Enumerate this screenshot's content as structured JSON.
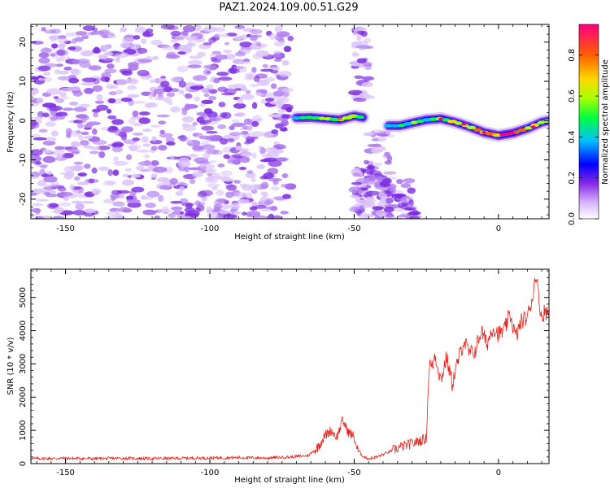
{
  "title": "PAZ1.2024.109.00.51.G29",
  "colors": {
    "amplitude_cmap": [
      "#ffffff",
      "#d9b8ff",
      "#8a2be2",
      "#0000ff",
      "#00bfff",
      "#00ff40",
      "#aaff00",
      "#ffd700",
      "#ff6000",
      "#ff0080"
    ],
    "snr_line": "#e8201a"
  },
  "chart_data": [
    {
      "type": "heatmap",
      "xlabel": "Height of straight line (km)",
      "ylabel": "Frequency (Hz)",
      "xlim": [
        -162,
        17.5
      ],
      "ylim": [
        -25,
        24.5
      ],
      "xticks": [
        -150,
        -100,
        -50,
        0
      ],
      "yticks": [
        -20,
        -10,
        0,
        10,
        20
      ],
      "colorbar": {
        "label": "Normalized spectral amplitude",
        "range": [
          0.0,
          0.95
        ],
        "ticks": [
          0.0,
          0.2,
          0.4,
          0.6,
          0.8
        ]
      },
      "ridge": [
        {
          "x": -70,
          "y": 0.7,
          "amp": 0.55
        },
        {
          "x": -65,
          "y": 0.8,
          "amp": 0.6
        },
        {
          "x": -60,
          "y": 0.5,
          "amp": 0.65
        },
        {
          "x": -55,
          "y": 0.2,
          "amp": 0.7
        },
        {
          "x": -50,
          "y": 1.2,
          "amp": 0.6
        },
        {
          "x": -47,
          "y": 0.8,
          "amp": 0.5
        },
        {
          "x": -38,
          "y": -1.3,
          "amp": 0.45
        },
        {
          "x": -34,
          "y": -1.3,
          "amp": 0.5
        },
        {
          "x": -30,
          "y": -0.6,
          "amp": 0.55
        },
        {
          "x": -25,
          "y": 0.2,
          "amp": 0.6
        },
        {
          "x": -20,
          "y": 0.5,
          "amp": 0.7
        },
        {
          "x": -15,
          "y": -0.4,
          "amp": 0.72
        },
        {
          "x": -10,
          "y": -1.6,
          "amp": 0.75
        },
        {
          "x": -5,
          "y": -3.0,
          "amp": 0.8
        },
        {
          "x": 0,
          "y": -3.8,
          "amp": 0.85
        },
        {
          "x": 5,
          "y": -3.2,
          "amp": 0.85
        },
        {
          "x": 10,
          "y": -2.0,
          "amp": 0.8
        },
        {
          "x": 15,
          "y": -0.4,
          "amp": 0.8
        },
        {
          "x": 17.5,
          "y": 0.0,
          "amp": 0.75
        }
      ],
      "noise_region": {
        "x": [
          -162,
          -72
        ],
        "y": [
          -25,
          24
        ]
      },
      "noise_streaks": [
        {
          "x": [
            -50,
            -45
          ],
          "y": [
            5,
            24
          ]
        },
        {
          "x": [
            -50,
            -44
          ],
          "y": [
            -25,
            -12
          ]
        },
        {
          "x": [
            -45,
            -37
          ],
          "y": [
            -25,
            -2
          ]
        },
        {
          "x": [
            -42,
            -30
          ],
          "y": [
            -25,
            -15
          ]
        }
      ]
    },
    {
      "type": "line",
      "xlabel": "Height of straight line (km)",
      "ylabel": "SNR (10 * v/v)",
      "xlim": [
        -162,
        17.5
      ],
      "ylim": [
        0,
        5850
      ],
      "xticks": [
        -150,
        -100,
        -50,
        0
      ],
      "yticks": [
        0,
        1000,
        2000,
        3000,
        4000,
        5000
      ],
      "series": [
        {
          "x": [
            -162,
            -150,
            -140,
            -130,
            -120,
            -110,
            -100,
            -90,
            -80,
            -72,
            -66,
            -63,
            -60,
            -58,
            -56,
            -54,
            -52,
            -50,
            -49,
            -47,
            -45,
            -42,
            -38,
            -34,
            -30,
            -27,
            -25,
            -24,
            -23,
            -22,
            -20,
            -18,
            -16,
            -14,
            -12,
            -10,
            -8,
            -6,
            -4,
            -2,
            0,
            2,
            4,
            6,
            8,
            10,
            12,
            13,
            14,
            15,
            16,
            17.5
          ],
          "y": [
            150,
            160,
            150,
            160,
            150,
            160,
            170,
            180,
            170,
            200,
            240,
            450,
            850,
            1000,
            800,
            1300,
            950,
            800,
            450,
            220,
            150,
            200,
            350,
            500,
            600,
            700,
            750,
            3000,
            2900,
            3300,
            2500,
            3200,
            2400,
            3100,
            3700,
            3300,
            3400,
            4000,
            3600,
            4100,
            3900,
            4000,
            4500,
            3800,
            4300,
            4400,
            5100,
            5800,
            4900,
            4400,
            4600,
            4500
          ]
        }
      ]
    }
  ]
}
